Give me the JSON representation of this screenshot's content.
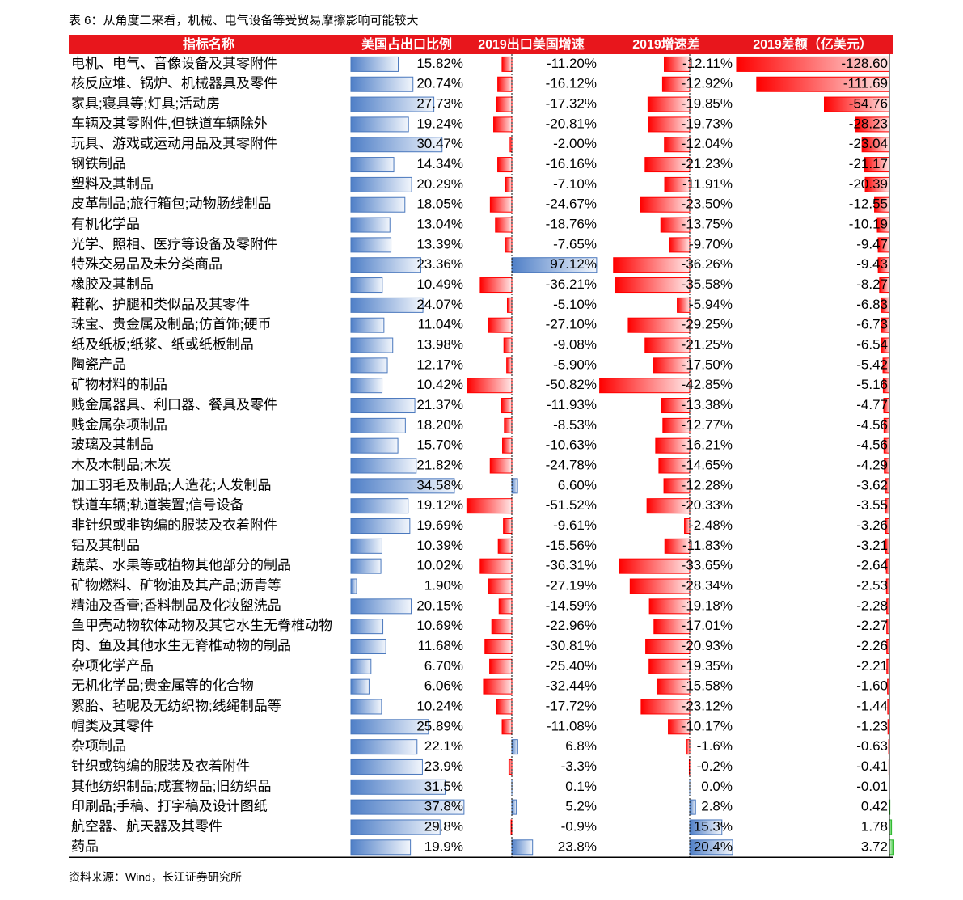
{
  "title": "表 6：从角度二来看，机械、电气设备等受贸易摩擦影响可能较大",
  "table": {
    "header": [
      "指标名称",
      "美国占出口比例",
      "2019出口美国增速",
      "2019增速差",
      "2019差额（亿美元）"
    ],
    "rows": [
      [
        "电机、电气、音像设备及其零附件",
        "15.82%",
        "-11.20%",
        "-12.11%",
        "-128.60"
      ],
      [
        "核反应堆、锅炉、机械器具及零件",
        "20.74%",
        "-16.12%",
        "-12.92%",
        "-111.69"
      ],
      [
        "家具;寝具等;灯具;活动房",
        "27.73%",
        "-17.32%",
        "-19.85%",
        "-54.76"
      ],
      [
        "车辆及其零附件,但铁道车辆除外",
        "19.24%",
        "-20.81%",
        "-19.73%",
        "-28.23"
      ],
      [
        "玩具、游戏或运动用品及其零附件",
        "30.47%",
        "-2.00%",
        "-12.04%",
        "-23.04"
      ],
      [
        "钢铁制品",
        "14.34%",
        "-16.16%",
        "-21.23%",
        "-21.17"
      ],
      [
        "塑料及其制品",
        "20.29%",
        "-7.10%",
        "-11.91%",
        "-20.39"
      ],
      [
        "皮革制品;旅行箱包;动物肠线制品",
        "18.05%",
        "-24.67%",
        "-23.50%",
        "-12.55"
      ],
      [
        "有机化学品",
        "13.04%",
        "-18.76%",
        "-13.75%",
        "-10.19"
      ],
      [
        "光学、照相、医疗等设备及零附件",
        "13.39%",
        "-7.65%",
        "-9.70%",
        "-9.47"
      ],
      [
        "特殊交易品及未分类商品",
        "23.36%",
        "97.12%",
        "-36.26%",
        "-9.43"
      ],
      [
        "橡胶及其制品",
        "10.49%",
        "-36.21%",
        "-35.58%",
        "-8.27"
      ],
      [
        "鞋靴、护腿和类似品及其零件",
        "24.07%",
        "-5.10%",
        "-5.94%",
        "-6.83"
      ],
      [
        "珠宝、贵金属及制品;仿首饰;硬币",
        "11.04%",
        "-27.10%",
        "-29.25%",
        "-6.73"
      ],
      [
        "纸及纸板;纸浆、纸或纸板制品",
        "13.98%",
        "-9.08%",
        "-21.25%",
        "-6.54"
      ],
      [
        "陶瓷产品",
        "12.17%",
        "-5.90%",
        "-17.50%",
        "-5.42"
      ],
      [
        "矿物材料的制品",
        "10.42%",
        "-50.82%",
        "-42.85%",
        "-5.16"
      ],
      [
        "贱金属器具、利口器、餐具及零件",
        "21.37%",
        "-11.93%",
        "-13.38%",
        "-4.77"
      ],
      [
        "贱金属杂项制品",
        "18.20%",
        "-8.53%",
        "-12.77%",
        "-4.56"
      ],
      [
        "玻璃及其制品",
        "15.70%",
        "-10.63%",
        "-16.21%",
        "-4.56"
      ],
      [
        "木及木制品;木炭",
        "21.82%",
        "-24.78%",
        "-14.65%",
        "-4.29"
      ],
      [
        "加工羽毛及制品;人造花;人发制品",
        "34.58%",
        "6.60%",
        "-12.28%",
        "-3.62"
      ],
      [
        "铁道车辆;轨道装置;信号设备",
        "19.12%",
        "-51.52%",
        "-20.33%",
        "-3.55"
      ],
      [
        "非针织或非钩编的服装及衣着附件",
        "19.69%",
        "-9.61%",
        "-2.48%",
        "-3.26"
      ],
      [
        "铝及其制品",
        "10.39%",
        "-15.56%",
        "-11.83%",
        "-3.21"
      ],
      [
        "蔬菜、水果等或植物其他部分的制品",
        "10.02%",
        "-36.31%",
        "-33.65%",
        "-2.64"
      ],
      [
        "矿物燃料、矿物油及其产品;沥青等",
        "1.90%",
        "-27.19%",
        "-28.34%",
        "-2.53"
      ],
      [
        "精油及香膏;香料制品及化妆盥洗品",
        "20.15%",
        "-14.59%",
        "-19.18%",
        "-2.28"
      ],
      [
        "鱼甲壳动物软体动物及其它水生无脊椎动物",
        "10.69%",
        "-22.96%",
        "-17.01%",
        "-2.27"
      ],
      [
        "肉、鱼及其他水生无脊椎动物的制品",
        "11.68%",
        "-30.81%",
        "-20.93%",
        "-2.26"
      ],
      [
        "杂项化学产品",
        "6.70%",
        "-25.40%",
        "-19.35%",
        "-2.21"
      ],
      [
        "无机化学品;贵金属等的化合物",
        "6.06%",
        "-32.44%",
        "-15.58%",
        "-1.60"
      ],
      [
        "絮胎、毡呢及无纺织物;线绳制品等",
        "10.24%",
        "-17.72%",
        "-23.12%",
        "-1.44"
      ],
      [
        "帽类及其零件",
        "25.89%",
        "-11.08%",
        "-10.17%",
        "-1.23"
      ],
      [
        "杂项制品",
        "22.1%",
        "6.8%",
        "-1.6%",
        "-0.63"
      ],
      [
        "针织或钩编的服装及衣着附件",
        "23.9%",
        "-3.3%",
        "-0.2%",
        "-0.41"
      ],
      [
        "其他纺织制品;成套物品;旧纺织品",
        "31.5%",
        "0.1%",
        "0.0%",
        "-0.01"
      ],
      [
        "印刷品;手稿、打字稿及设计图纸",
        "37.8%",
        "5.2%",
        "2.8%",
        "0.42"
      ],
      [
        "航空器、航天器及其零件",
        "29.8%",
        "-0.9%",
        "15.3%",
        "1.78"
      ],
      [
        "药品",
        "19.9%",
        "23.8%",
        "20.4%",
        "3.72"
      ]
    ]
  },
  "source": "资料来源：Wind，长江证券研究所"
}
